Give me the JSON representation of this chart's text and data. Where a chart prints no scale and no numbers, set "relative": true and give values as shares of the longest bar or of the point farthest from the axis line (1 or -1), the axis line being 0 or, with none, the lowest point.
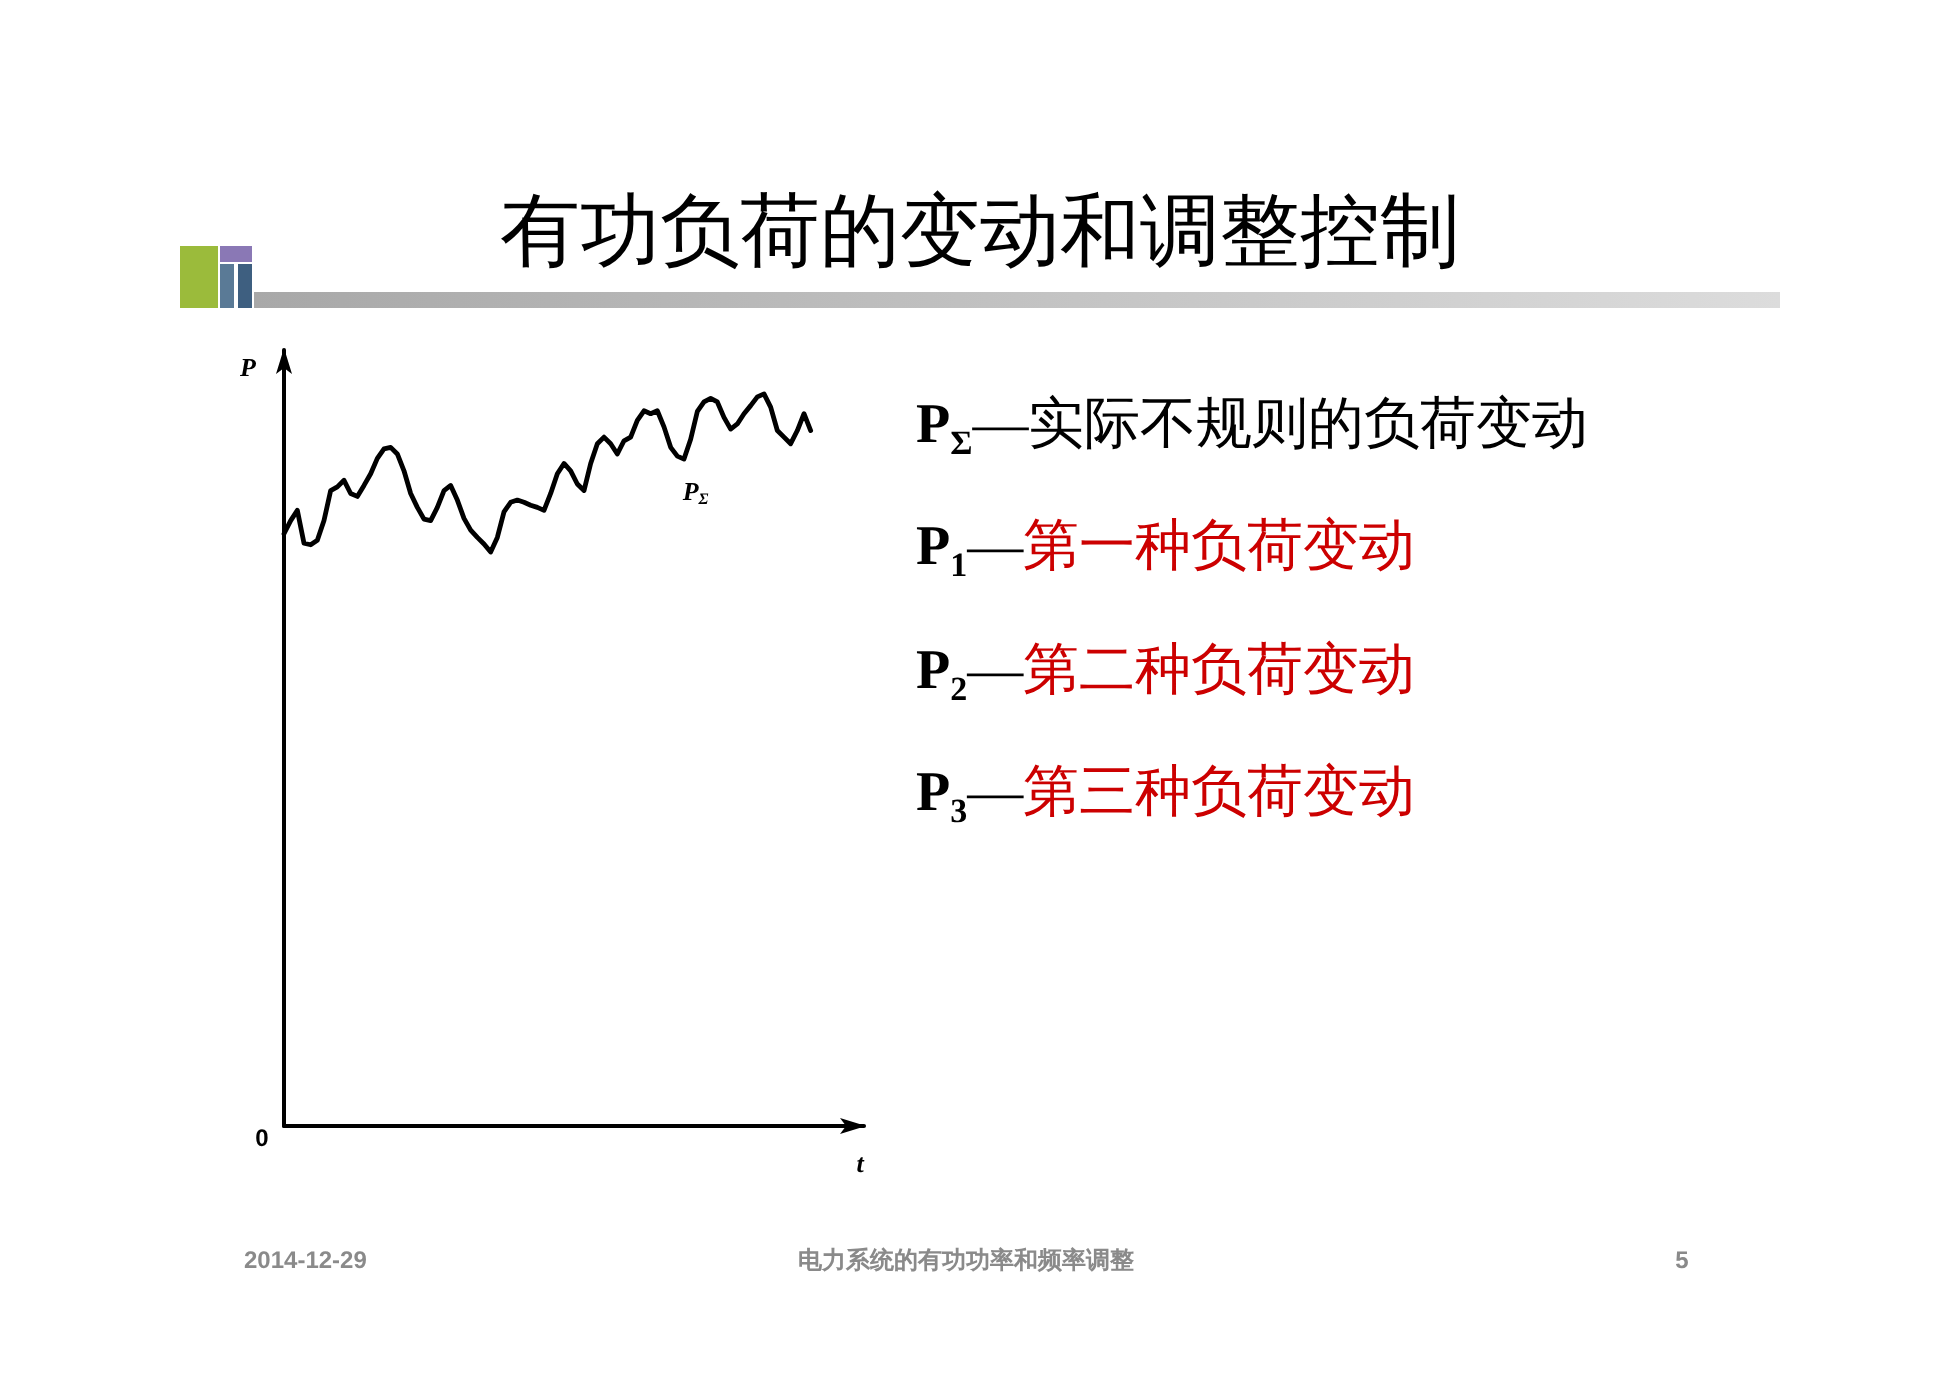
{
  "chart_data": {
    "type": "line",
    "title": "有功负荷的变动和调整控制",
    "xlabel": "t",
    "ylabel": "P",
    "relative": true,
    "grid": false,
    "legend": false,
    "marker": "none",
    "line_style": "solid",
    "categories": [
      null,
      null,
      null,
      null,
      null,
      null,
      null,
      null,
      null,
      null,
      null,
      null,
      null,
      null,
      null,
      null,
      null,
      null,
      null,
      null,
      null,
      null,
      null,
      null,
      null,
      null,
      null,
      null,
      null,
      null,
      null,
      null,
      null,
      null,
      null,
      null,
      null,
      null,
      null,
      null,
      null,
      null,
      null,
      null,
      null,
      null,
      null,
      null,
      null,
      null,
      null,
      null,
      null,
      null,
      null,
      null,
      null,
      null,
      null,
      null,
      null,
      null,
      null,
      null,
      null,
      null,
      null,
      null,
      null,
      null,
      null,
      null,
      null,
      null,
      null,
      null,
      null,
      null,
      null,
      null,
      null,
      null,
      null,
      null,
      null,
      null,
      null,
      null
    ],
    "series": [
      {
        "name": "P$_{Σ}$",
        "color": "#000000",
        "values": [
          0.809,
          0.827,
          0.841,
          0.796,
          0.794,
          0.8,
          0.827,
          0.868,
          0.873,
          0.882,
          0.864,
          0.86,
          0.875,
          0.891,
          0.912,
          0.925,
          0.927,
          0.918,
          0.895,
          0.864,
          0.845,
          0.829,
          0.827,
          0.845,
          0.868,
          0.875,
          0.855,
          0.83,
          0.814,
          0.804,
          0.795,
          0.784,
          0.804,
          0.839,
          0.852,
          0.855,
          0.852,
          0.848,
          0.845,
          0.841,
          0.864,
          0.891,
          0.905,
          0.895,
          0.877,
          0.868,
          0.905,
          0.932,
          0.941,
          0.932,
          0.918,
          0.936,
          0.941,
          0.964,
          0.977,
          0.973,
          0.977,
          0.955,
          0.927,
          0.915,
          0.911,
          0.938,
          0.976,
          0.989,
          0.994,
          0.989,
          0.968,
          0.952,
          0.959,
          0.973,
          0.984,
          0.996,
          1.0,
          0.982,
          0.95,
          0.941,
          0.932,
          0.95,
          0.973,
          0.95,
          null,
          null,
          null,
          null,
          null,
          null,
          null,
          null
        ]
      }
    ],
    "annotations": [
      "P$_{Σ}$—实际不规则的负荷变动",
      "P$_{1}$—第一种负荷变动",
      "P$_{2}$—第二种负荷变动",
      "P$_{3}$—第三种负荷变动",
      "0",
      "2014-12-29",
      "电力系统的有功功率和频率调整",
      "5"
    ]
  }
}
